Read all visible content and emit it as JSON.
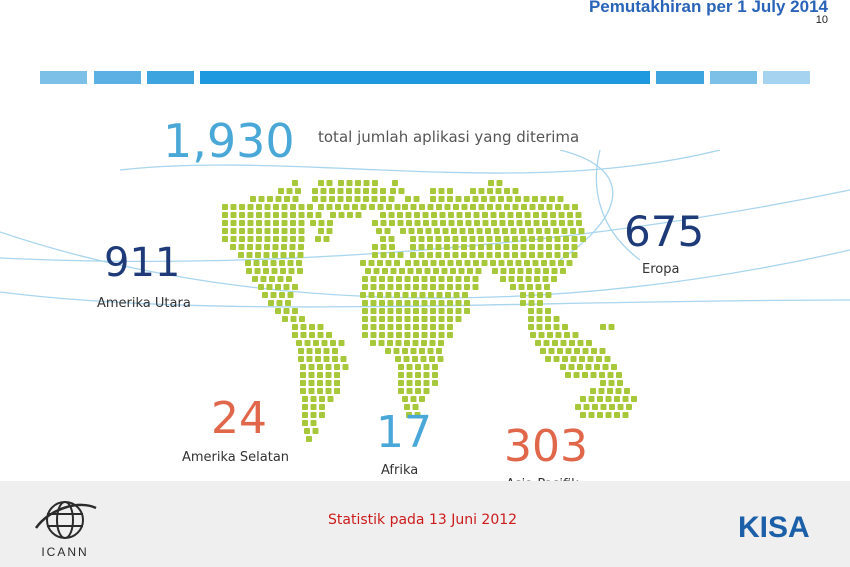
{
  "header": {
    "title": "Pemutakhiran per 1 July 2014",
    "page_number": "10"
  },
  "colors": {
    "light_blue": "#7cc0e8",
    "accent_blue": "#1e98de",
    "green": "#a8c83c",
    "number_light_blue": "#4aa8d8",
    "navy": "#1e3a78",
    "orange_red": "#e0674a",
    "footer_red": "#cc1c1c"
  },
  "summary": {
    "total_value": "1,930",
    "total_label": "total jumlah aplikasi yang diterima"
  },
  "regions": [
    {
      "value": "911",
      "label": "Amerika Utara"
    },
    {
      "value": "675",
      "label": "Eropa"
    },
    {
      "value": "24",
      "label": "Amerika Selatan"
    },
    {
      "value": "17",
      "label": "Afrika"
    },
    {
      "value": "303",
      "label": "Asia Pasifik"
    }
  ],
  "footer": {
    "note": "Statistik pada 13 Juni 2012",
    "left_logo_text": "ICANN",
    "right_logo_text": "KISA"
  },
  "icons": {
    "map": "dotted-world-map-icon",
    "left_logo": "icann-globe-logo-icon",
    "right_logo": "kisa-logo-icon"
  }
}
